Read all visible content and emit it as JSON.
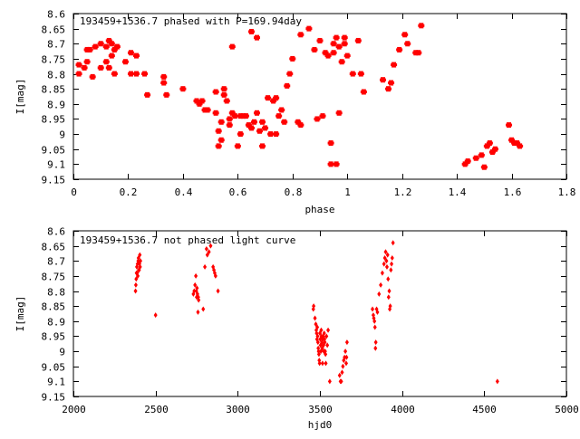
{
  "chart_data": [
    {
      "type": "scatter",
      "title": "193459+1536.7 phased with P=169.94day",
      "xlabel": "phase",
      "ylabel": "I[mag]",
      "xlim": [
        0,
        1.8
      ],
      "ylim": [
        8.6,
        9.15
      ],
      "y_inverted": true,
      "grid": false,
      "xticks": [
        "0",
        "0.2",
        "0.4",
        "0.6",
        "0.8",
        "1",
        "1.2",
        "1.4",
        "1.6",
        "1.8"
      ],
      "xtick_values": [
        0,
        0.2,
        0.4,
        0.6,
        0.8,
        1.0,
        1.2,
        1.4,
        1.6,
        1.8
      ],
      "yticks": [
        "8.6",
        "8.65",
        "8.7",
        "8.75",
        "8.8",
        "8.85",
        "8.9",
        "8.95",
        "9",
        "9.05",
        "9.1",
        "9.15"
      ],
      "ytick_values": [
        8.6,
        8.65,
        8.7,
        8.75,
        8.8,
        8.85,
        8.9,
        8.95,
        9.0,
        9.05,
        9.1,
        9.15
      ],
      "marker_color": "#ff0000",
      "points": [
        [
          0.02,
          8.77
        ],
        [
          0.02,
          8.8
        ],
        [
          0.04,
          8.78
        ],
        [
          0.05,
          8.76
        ],
        [
          0.05,
          8.72
        ],
        [
          0.06,
          8.72
        ],
        [
          0.07,
          8.81
        ],
        [
          0.08,
          8.71
        ],
        [
          0.1,
          8.78
        ],
        [
          0.1,
          8.7
        ],
        [
          0.12,
          8.76
        ],
        [
          0.12,
          8.71
        ],
        [
          0.13,
          8.69
        ],
        [
          0.13,
          8.78
        ],
        [
          0.14,
          8.74
        ],
        [
          0.14,
          8.7
        ],
        [
          0.15,
          8.72
        ],
        [
          0.15,
          8.8
        ],
        [
          0.16,
          8.71
        ],
        [
          0.19,
          8.76
        ],
        [
          0.21,
          8.73
        ],
        [
          0.21,
          8.8
        ],
        [
          0.23,
          8.74
        ],
        [
          0.23,
          8.8
        ],
        [
          0.26,
          8.8
        ],
        [
          0.27,
          8.87
        ],
        [
          0.33,
          8.81
        ],
        [
          0.33,
          8.83
        ],
        [
          0.34,
          8.87
        ],
        [
          0.4,
          8.85
        ],
        [
          0.45,
          8.89
        ],
        [
          0.46,
          8.9
        ],
        [
          0.47,
          8.89
        ],
        [
          0.48,
          8.92
        ],
        [
          0.49,
          8.92
        ],
        [
          0.52,
          8.93
        ],
        [
          0.52,
          8.86
        ],
        [
          0.53,
          8.99
        ],
        [
          0.53,
          9.04
        ],
        [
          0.54,
          9.02
        ],
        [
          0.54,
          8.96
        ],
        [
          0.55,
          8.87
        ],
        [
          0.55,
          8.85
        ],
        [
          0.56,
          8.89
        ],
        [
          0.57,
          8.95
        ],
        [
          0.57,
          8.97
        ],
        [
          0.58,
          8.71
        ],
        [
          0.58,
          8.93
        ],
        [
          0.59,
          8.94
        ],
        [
          0.6,
          9.04
        ],
        [
          0.61,
          9.0
        ],
        [
          0.61,
          8.94
        ],
        [
          0.62,
          8.94
        ],
        [
          0.63,
          8.94
        ],
        [
          0.64,
          8.97
        ],
        [
          0.65,
          8.66
        ],
        [
          0.65,
          8.98
        ],
        [
          0.66,
          8.96
        ],
        [
          0.67,
          8.68
        ],
        [
          0.67,
          8.93
        ],
        [
          0.68,
          8.99
        ],
        [
          0.69,
          8.96
        ],
        [
          0.69,
          9.04
        ],
        [
          0.7,
          8.98
        ],
        [
          0.71,
          8.88
        ],
        [
          0.72,
          9.0
        ],
        [
          0.73,
          8.89
        ],
        [
          0.74,
          8.88
        ],
        [
          0.74,
          9.0
        ],
        [
          0.75,
          8.94
        ],
        [
          0.76,
          8.92
        ],
        [
          0.77,
          8.96
        ],
        [
          0.78,
          8.84
        ],
        [
          0.79,
          8.8
        ],
        [
          0.8,
          8.75
        ],
        [
          0.82,
          8.96
        ],
        [
          0.83,
          8.67
        ],
        [
          0.83,
          8.97
        ],
        [
          0.86,
          8.65
        ],
        [
          0.88,
          8.72
        ],
        [
          0.89,
          8.95
        ],
        [
          0.9,
          8.69
        ],
        [
          0.91,
          8.94
        ],
        [
          0.92,
          8.73
        ],
        [
          0.93,
          8.74
        ],
        [
          0.94,
          9.03
        ],
        [
          0.94,
          9.1
        ],
        [
          0.95,
          8.7
        ],
        [
          0.95,
          8.73
        ],
        [
          0.96,
          8.68
        ],
        [
          0.96,
          9.1
        ],
        [
          0.97,
          8.93
        ],
        [
          0.97,
          8.71
        ],
        [
          0.98,
          8.76
        ],
        [
          0.99,
          8.7
        ],
        [
          0.99,
          8.68
        ],
        [
          1.0,
          8.74
        ],
        [
          1.02,
          8.8
        ],
        [
          1.04,
          8.69
        ],
        [
          1.05,
          8.8
        ],
        [
          1.06,
          8.86
        ],
        [
          1.13,
          8.82
        ],
        [
          1.15,
          8.85
        ],
        [
          1.16,
          8.83
        ],
        [
          1.17,
          8.77
        ],
        [
          1.19,
          8.72
        ],
        [
          1.21,
          8.67
        ],
        [
          1.22,
          8.7
        ],
        [
          1.25,
          8.73
        ],
        [
          1.26,
          8.73
        ],
        [
          1.27,
          8.64
        ],
        [
          1.43,
          9.1
        ],
        [
          1.44,
          9.09
        ],
        [
          1.47,
          9.08
        ],
        [
          1.49,
          9.07
        ],
        [
          1.5,
          9.11
        ],
        [
          1.51,
          9.04
        ],
        [
          1.52,
          9.03
        ],
        [
          1.53,
          9.06
        ],
        [
          1.54,
          9.05
        ],
        [
          1.59,
          8.97
        ],
        [
          1.6,
          9.02
        ],
        [
          1.61,
          9.03
        ],
        [
          1.62,
          9.03
        ],
        [
          1.63,
          9.04
        ]
      ]
    },
    {
      "type": "scatter",
      "title": "193459+1536.7 not phased light curve",
      "xlabel": "hjd0",
      "ylabel": "I[mag]",
      "xlim": [
        2000,
        5000
      ],
      "ylim": [
        8.6,
        9.15
      ],
      "y_inverted": true,
      "grid": false,
      "xticks": [
        "2000",
        "2500",
        "3000",
        "3500",
        "4000",
        "4500",
        "5000"
      ],
      "xtick_values": [
        2000,
        2500,
        3000,
        3500,
        4000,
        4500,
        5000
      ],
      "yticks": [
        "8.6",
        "8.65",
        "8.7",
        "8.75",
        "8.8",
        "8.85",
        "8.9",
        "8.95",
        "9",
        "9.05",
        "9.1",
        "9.15"
      ],
      "ytick_values": [
        8.6,
        8.65,
        8.7,
        8.75,
        8.8,
        8.85,
        8.9,
        8.95,
        9.0,
        9.05,
        9.1,
        9.15
      ],
      "marker_color": "#ff0000",
      "points": [
        [
          2378,
          8.8
        ],
        [
          2380,
          8.78
        ],
        [
          2382,
          8.76
        ],
        [
          2384,
          8.74
        ],
        [
          2386,
          8.72
        ],
        [
          2388,
          8.74
        ],
        [
          2390,
          8.71
        ],
        [
          2392,
          8.75
        ],
        [
          2394,
          8.7
        ],
        [
          2396,
          8.69
        ],
        [
          2398,
          8.73
        ],
        [
          2400,
          8.73
        ],
        [
          2402,
          8.71
        ],
        [
          2404,
          8.68
        ],
        [
          2406,
          8.72
        ],
        [
          2408,
          8.7
        ],
        [
          2500,
          8.88
        ],
        [
          2730,
          8.81
        ],
        [
          2735,
          8.8
        ],
        [
          2740,
          8.78
        ],
        [
          2745,
          8.75
        ],
        [
          2748,
          8.8
        ],
        [
          2750,
          8.82
        ],
        [
          2752,
          8.79
        ],
        [
          2755,
          8.81
        ],
        [
          2758,
          8.87
        ],
        [
          2760,
          8.82
        ],
        [
          2762,
          8.83
        ],
        [
          2790,
          8.86
        ],
        [
          2800,
          8.72
        ],
        [
          2810,
          8.66
        ],
        [
          2815,
          8.68
        ],
        [
          2825,
          8.67
        ],
        [
          2835,
          8.65
        ],
        [
          2850,
          8.72
        ],
        [
          2855,
          8.73
        ],
        [
          2860,
          8.74
        ],
        [
          2865,
          8.75
        ],
        [
          2880,
          8.8
        ],
        [
          3460,
          8.86
        ],
        [
          3462,
          8.85
        ],
        [
          3470,
          8.89
        ],
        [
          3475,
          8.91
        ],
        [
          3478,
          8.93
        ],
        [
          3480,
          8.94
        ],
        [
          3482,
          8.96
        ],
        [
          3484,
          8.92
        ],
        [
          3486,
          8.95
        ],
        [
          3488,
          8.97
        ],
        [
          3490,
          8.99
        ],
        [
          3492,
          9.0
        ],
        [
          3494,
          9.01
        ],
        [
          3496,
          9.03
        ],
        [
          3498,
          9.04
        ],
        [
          3500,
          8.94
        ],
        [
          3502,
          8.96
        ],
        [
          3504,
          8.98
        ],
        [
          3506,
          9.0
        ],
        [
          3508,
          8.93
        ],
        [
          3510,
          8.95
        ],
        [
          3512,
          8.97
        ],
        [
          3514,
          8.99
        ],
        [
          3516,
          9.04
        ],
        [
          3518,
          8.96
        ],
        [
          3520,
          8.95
        ],
        [
          3522,
          8.98
        ],
        [
          3524,
          9.0
        ],
        [
          3526,
          8.94
        ],
        [
          3528,
          8.96
        ],
        [
          3530,
          8.97
        ],
        [
          3532,
          9.0
        ],
        [
          3534,
          9.01
        ],
        [
          3536,
          9.04
        ],
        [
          3540,
          8.95
        ],
        [
          3545,
          8.98
        ],
        [
          3550,
          8.93
        ],
        [
          3560,
          9.1
        ],
        [
          3620,
          9.08
        ],
        [
          3625,
          9.1
        ],
        [
          3630,
          9.1
        ],
        [
          3635,
          9.07
        ],
        [
          3640,
          9.05
        ],
        [
          3645,
          9.03
        ],
        [
          3650,
          9.02
        ],
        [
          3655,
          9.0
        ],
        [
          3660,
          9.04
        ],
        [
          3662,
          9.02
        ],
        [
          3665,
          8.97
        ],
        [
          3820,
          8.86
        ],
        [
          3825,
          8.88
        ],
        [
          3828,
          8.89
        ],
        [
          3832,
          8.9
        ],
        [
          3835,
          8.92
        ],
        [
          3838,
          8.99
        ],
        [
          3840,
          8.97
        ],
        [
          3845,
          8.86
        ],
        [
          3850,
          8.87
        ],
        [
          3860,
          8.81
        ],
        [
          3870,
          8.78
        ],
        [
          3880,
          8.74
        ],
        [
          3890,
          8.71
        ],
        [
          3895,
          8.69
        ],
        [
          3900,
          8.67
        ],
        [
          3905,
          8.7
        ],
        [
          3908,
          8.72
        ],
        [
          3912,
          8.68
        ],
        [
          3915,
          8.76
        ],
        [
          3918,
          8.82
        ],
        [
          3922,
          8.8
        ],
        [
          3925,
          8.86
        ],
        [
          3928,
          8.85
        ],
        [
          3932,
          8.73
        ],
        [
          3936,
          8.71
        ],
        [
          3940,
          8.69
        ],
        [
          3945,
          8.64
        ],
        [
          4580,
          9.1
        ]
      ]
    }
  ]
}
